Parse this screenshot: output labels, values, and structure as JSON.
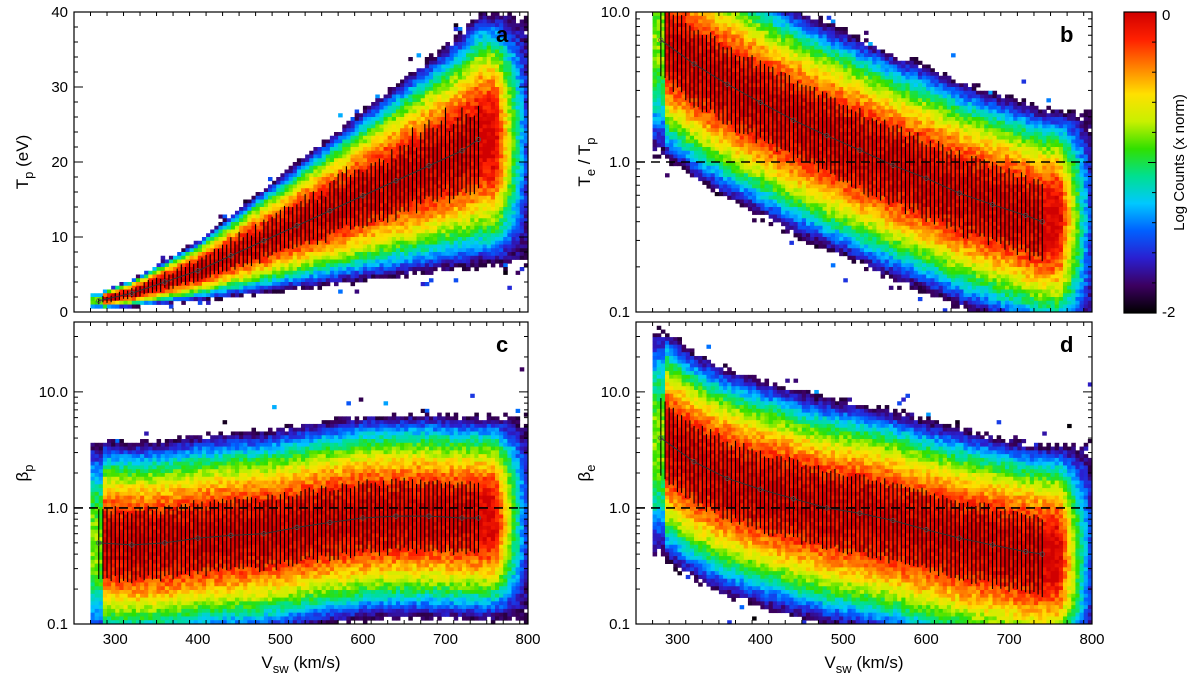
{
  "colorbar": {
    "label": "Log Counts (x norm)",
    "max_label": "0",
    "min_label": "-2",
    "range": [
      -2,
      0
    ],
    "colors": [
      "#000000",
      "#3c0060",
      "#2a1fd0",
      "#0060ff",
      "#00c8ff",
      "#00e090",
      "#30e000",
      "#c8f000",
      "#ffe000",
      "#ff8000",
      "#ff2000",
      "#d00000"
    ]
  },
  "chart_data": [
    {
      "type": "heatmap",
      "panel_label": "a",
      "xlabel": "V",
      "xlabel_sub": "sw",
      "xlabel_unit": "(km/s)",
      "ylabel": "T",
      "ylabel_sub": "p",
      "ylabel_unit": "(eV)",
      "ylog": false,
      "xlim": [
        250,
        800
      ],
      "ylim": [
        0,
        40
      ],
      "xticks": [
        300,
        400,
        500,
        600,
        700,
        800
      ],
      "show_xticklabels": false,
      "yticks": [
        0,
        10,
        20,
        30,
        40
      ],
      "yticklabels": [
        "0",
        "10",
        "20",
        "30",
        "40"
      ],
      "reference_line": null,
      "median": {
        "x": [
          280,
          320,
          360,
          400,
          440,
          480,
          520,
          560,
          600,
          640,
          680,
          720,
          740
        ],
        "y": [
          1.5,
          2.5,
          4,
          5.5,
          7.5,
          9.5,
          11.5,
          13.5,
          15.5,
          17.5,
          19.5,
          21.5,
          23
        ]
      },
      "spread": {
        "lower_factor": 0.75,
        "upper_factor": 1.25
      }
    },
    {
      "type": "heatmap",
      "panel_label": "b",
      "xlabel": "V",
      "xlabel_sub": "sw",
      "xlabel_unit": "(km/s)",
      "ylabel": "T",
      "ylabel_sub": "e",
      "ylabel_mid": " / T",
      "ylabel_sub2": "p",
      "ylog": true,
      "xlim": [
        250,
        800
      ],
      "ylim": [
        0.1,
        10
      ],
      "xticks": [
        300,
        400,
        500,
        600,
        700,
        800
      ],
      "show_xticklabels": false,
      "yticks": [
        0.1,
        1,
        10
      ],
      "yticklabels": [
        "0.1",
        "1.0",
        "10.0"
      ],
      "reference_line": 1.0,
      "median": {
        "x": [
          280,
          320,
          360,
          400,
          440,
          480,
          520,
          560,
          600,
          640,
          680,
          720,
          740
        ],
        "y": [
          6.5,
          4.5,
          3.3,
          2.5,
          1.9,
          1.5,
          1.2,
          0.95,
          0.78,
          0.62,
          0.52,
          0.44,
          0.4
        ]
      },
      "spread": {
        "lower_factor": 0.55,
        "upper_factor": 1.8
      }
    },
    {
      "type": "heatmap",
      "panel_label": "c",
      "xlabel": "V",
      "xlabel_sub": "sw",
      "xlabel_unit": "(km/s)",
      "ylabel": "β",
      "ylabel_sub": "p",
      "ylog": true,
      "xlim": [
        250,
        800
      ],
      "ylim": [
        0.1,
        40
      ],
      "xticks": [
        300,
        400,
        500,
        600,
        700,
        800
      ],
      "show_xticklabels": true,
      "xticklabels": [
        "300",
        "400",
        "500",
        "600",
        "700",
        "800"
      ],
      "yticks": [
        0.1,
        1,
        10
      ],
      "yticklabels": [
        "0.1",
        "1.0",
        "10.0"
      ],
      "reference_line": 1.0,
      "median": {
        "x": [
          280,
          320,
          360,
          400,
          440,
          480,
          520,
          560,
          600,
          640,
          680,
          720,
          740
        ],
        "y": [
          0.5,
          0.48,
          0.5,
          0.55,
          0.58,
          0.6,
          0.68,
          0.75,
          0.82,
          0.85,
          0.85,
          0.82,
          0.82
        ]
      },
      "spread": {
        "lower_factor": 0.5,
        "upper_factor": 2.0
      }
    },
    {
      "type": "heatmap",
      "panel_label": "d",
      "xlabel": "V",
      "xlabel_sub": "sw",
      "xlabel_unit": "(km/s)",
      "ylabel": "β",
      "ylabel_sub": "e",
      "ylog": true,
      "xlim": [
        250,
        800
      ],
      "ylim": [
        0.1,
        40
      ],
      "xticks": [
        300,
        400,
        500,
        600,
        700,
        800
      ],
      "show_xticklabels": true,
      "xticklabels": [
        "300",
        "400",
        "500",
        "600",
        "700",
        "800"
      ],
      "yticks": [
        0.1,
        1,
        10
      ],
      "yticklabels": [
        "0.1",
        "1.0",
        "10.0"
      ],
      "reference_line": 1.0,
      "median": {
        "x": [
          280,
          320,
          360,
          400,
          440,
          480,
          520,
          560,
          600,
          640,
          680,
          720,
          740
        ],
        "y": [
          4,
          2.5,
          1.8,
          1.45,
          1.2,
          1.0,
          0.9,
          0.78,
          0.65,
          0.55,
          0.48,
          0.42,
          0.4
        ]
      },
      "spread": {
        "lower_factor": 0.45,
        "upper_factor": 2.1
      }
    }
  ]
}
